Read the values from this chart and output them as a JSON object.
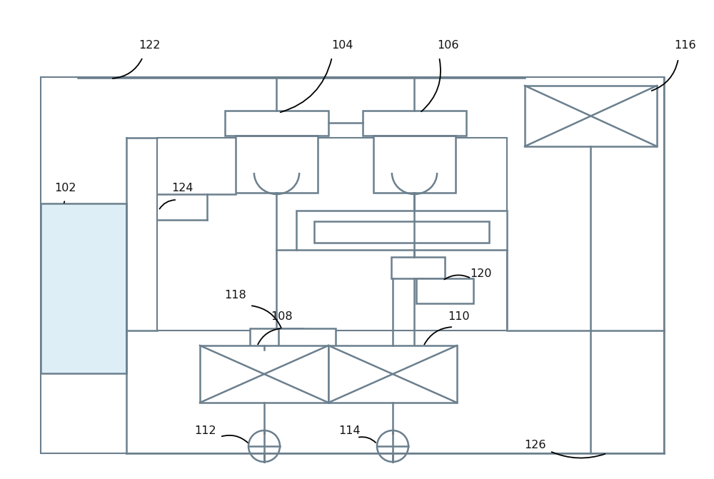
{
  "bg_color": "#ffffff",
  "lc": "#6b7f8d",
  "lc2": "#5a7080",
  "label_color": "#111111",
  "fig_width": 10.0,
  "fig_height": 6.71,
  "dpi": 100
}
